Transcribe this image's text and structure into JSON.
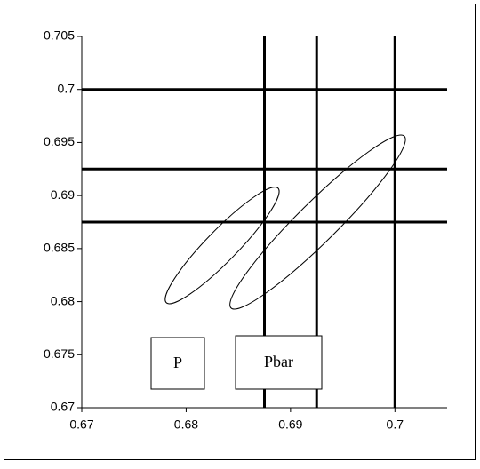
{
  "chart_data": {
    "type": "ellipse",
    "xlim": [
      0.67,
      0.705
    ],
    "ylim": [
      0.67,
      0.705
    ],
    "xticks": [
      0.67,
      0.68,
      0.69,
      0.7
    ],
    "yticks": [
      0.67,
      0.675,
      0.68,
      0.685,
      0.69,
      0.695,
      0.7,
      0.705
    ],
    "hlines": [
      0.6875,
      0.6925,
      0.7
    ],
    "vlines": [
      0.6875,
      0.6925,
      0.7
    ],
    "ellipses": [
      {
        "cx": 0.68345,
        "cy": 0.6853,
        "tip_x": 0.6888,
        "tip_y": 0.6907,
        "minor": 0.0015
      },
      {
        "cx": 0.6926,
        "cy": 0.6875,
        "tip_x": 0.7009,
        "tip_y": 0.6956,
        "minor": 0.0019
      }
    ],
    "annotations": [
      "P",
      "Pbar"
    ],
    "color": "#000000"
  }
}
